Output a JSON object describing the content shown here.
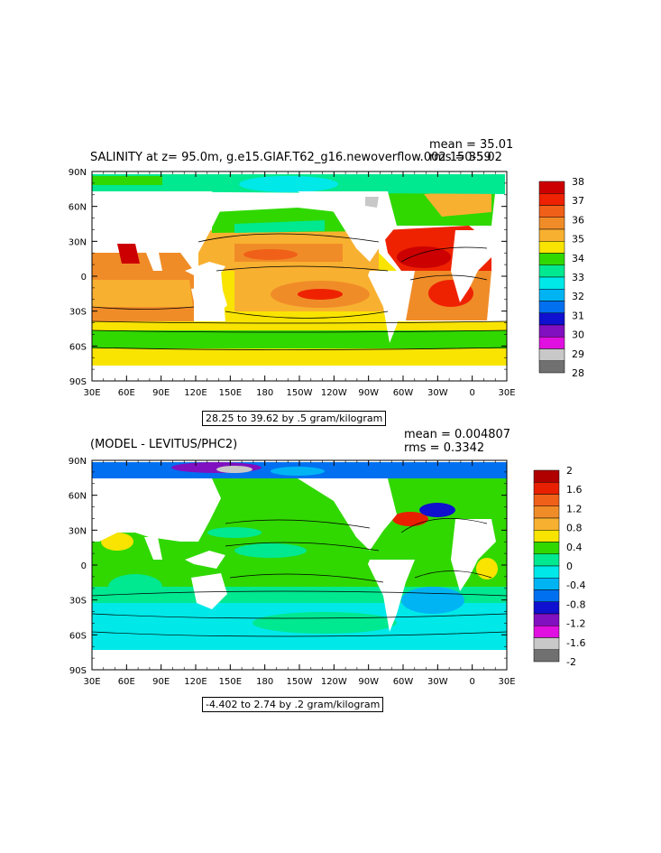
{
  "panel1": {
    "title": "SALINITY at z=  95.0m, g.e15.GIAF.T62_g16.newoverflow.002 150-59",
    "mean_label": "mean = 35.01",
    "rms_label": "rms = 35.02",
    "range_label": "28.25 to 39.62 by .5 gram/kilogram",
    "colorbar_labels": [
      "38",
      "37",
      "36",
      "35",
      "34",
      "33",
      "32",
      "31",
      "30",
      "29",
      "28"
    ]
  },
  "panel2": {
    "title": "(MODEL - LEVITUS/PHC2)",
    "mean_label": "mean = 0.004807",
    "rms_label": "rms = 0.3342",
    "range_label": "-4.402 to 2.74 by .2 gram/kilogram",
    "colorbar_labels": [
      "2",
      "1.6",
      "1.2",
      "0.8",
      "0.4",
      "0",
      "-0.4",
      "-0.8",
      "-1.2",
      "-1.6",
      "-2"
    ]
  },
  "axes": {
    "lat_labels": [
      "90N",
      "60N",
      "30N",
      "0",
      "30S",
      "60S",
      "90S"
    ],
    "lon_labels": [
      "30E",
      "60E",
      "90E",
      "120E",
      "150E",
      "180",
      "150W",
      "120W",
      "90W",
      "60W",
      "30W",
      "0",
      "30E"
    ]
  },
  "colors": {
    "sal_scale": [
      "#cc0000",
      "#ee2200",
      "#f06018",
      "#f08c28",
      "#f8b030",
      "#f8e400",
      "#30d800",
      "#00e890",
      "#00e8e8",
      "#00b4f4",
      "#0070f0",
      "#1010d0",
      "#8010c0",
      "#e010e0",
      "#c8c8c8",
      "#707070"
    ],
    "diff_scale": [
      "#b00000",
      "#e82000",
      "#f06018",
      "#f08c28",
      "#f8b030",
      "#f8e400",
      "#30d800",
      "#00e890",
      "#00e8e8",
      "#00b4f4",
      "#0070f0",
      "#1010d0",
      "#8010c0",
      "#e010e0",
      "#c8c8c8",
      "#707070"
    ]
  }
}
